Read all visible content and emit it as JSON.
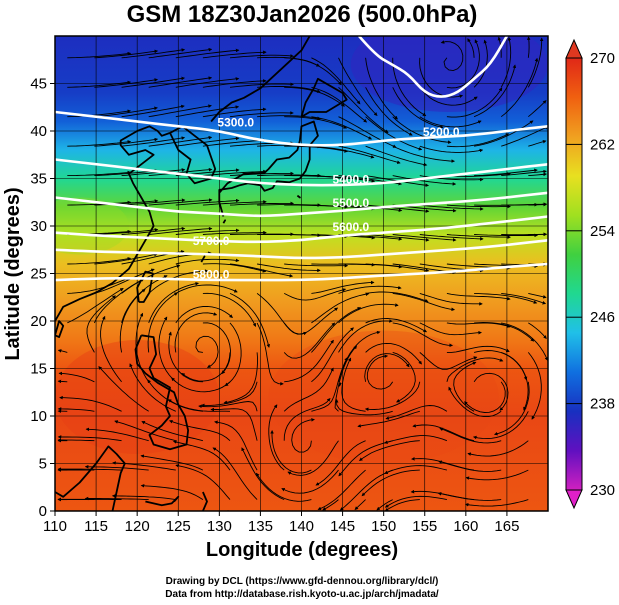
{
  "chart_data": {
    "type": "heatmap",
    "title": "GSM 18Z30Jan2026 (500.0hPa)",
    "xlabel": "Longitude (degrees)",
    "ylabel": "Latitude (degrees)",
    "xlim": [
      110,
      170
    ],
    "ylim": [
      0,
      50
    ],
    "xticks": [
      110,
      115,
      120,
      125,
      130,
      135,
      140,
      145,
      150,
      155,
      160,
      165
    ],
    "yticks": [
      0,
      5,
      10,
      15,
      20,
      25,
      30,
      35,
      40,
      45
    ],
    "grid": true,
    "colorbar": {
      "min": 230,
      "max": 270,
      "ticks": [
        230,
        238,
        246,
        254,
        262,
        270
      ],
      "colors": [
        "#d020c0",
        "#6010c0",
        "#1830c0",
        "#1070e0",
        "#20c0e8",
        "#20d890",
        "#40d040",
        "#a0e020",
        "#e8e020",
        "#f0a020",
        "#f06010",
        "#e02818"
      ]
    },
    "temperature_profile": {
      "latitudes": [
        0,
        5,
        10,
        15,
        18,
        22,
        26,
        29,
        32,
        35,
        38,
        41,
        44,
        50
      ],
      "values": [
        267,
        267.5,
        268,
        267,
        265,
        263,
        261,
        257,
        253,
        248,
        244,
        240,
        238,
        237
      ]
    },
    "contour_labels": [
      {
        "text": "5300.0",
        "lon": 132,
        "lat": 40.5
      },
      {
        "text": "5200.0",
        "lon": 157,
        "lat": 39.5
      },
      {
        "text": "5400.0",
        "lon": 146,
        "lat": 34.5
      },
      {
        "text": "5500.0",
        "lon": 146,
        "lat": 32.0
      },
      {
        "text": "5600.0",
        "lon": 146,
        "lat": 29.5
      },
      {
        "text": "5700.0",
        "lon": 129,
        "lat": 28.0
      },
      {
        "text": "5800.0",
        "lon": 129,
        "lat": 24.5
      }
    ],
    "contours": [
      {
        "value": 5200,
        "points": [
          [
            147,
            50
          ],
          [
            149,
            48
          ],
          [
            151,
            47
          ],
          [
            153,
            46
          ],
          [
            155,
            44
          ],
          [
            157,
            43.5
          ],
          [
            159,
            44
          ],
          [
            161,
            45.5
          ],
          [
            163,
            47
          ],
          [
            165,
            50
          ]
        ]
      },
      {
        "value": 5300,
        "points": [
          [
            110,
            42
          ],
          [
            115,
            41.5
          ],
          [
            120,
            41
          ],
          [
            125,
            40.5
          ],
          [
            130,
            40
          ],
          [
            135,
            39
          ],
          [
            140,
            38.5
          ],
          [
            145,
            38.5
          ],
          [
            150,
            39
          ],
          [
            155,
            39.3
          ],
          [
            160,
            39.5
          ],
          [
            165,
            40
          ],
          [
            170,
            40.5
          ]
        ]
      },
      {
        "value": 5400,
        "points": [
          [
            110,
            37
          ],
          [
            115,
            36.5
          ],
          [
            120,
            36
          ],
          [
            125,
            35.5
          ],
          [
            130,
            35
          ],
          [
            135,
            34.5
          ],
          [
            140,
            34.3
          ],
          [
            145,
            34.3
          ],
          [
            150,
            34.5
          ],
          [
            155,
            35
          ],
          [
            160,
            35.5
          ],
          [
            165,
            36
          ],
          [
            170,
            36.5
          ]
        ]
      },
      {
        "value": 5500,
        "points": [
          [
            110,
            33
          ],
          [
            115,
            32.5
          ],
          [
            120,
            32
          ],
          [
            125,
            31.5
          ],
          [
            130,
            31.3
          ],
          [
            135,
            31
          ],
          [
            140,
            31.3
          ],
          [
            145,
            31.6
          ],
          [
            150,
            32
          ],
          [
            155,
            32.3
          ],
          [
            160,
            32.6
          ],
          [
            165,
            33
          ],
          [
            170,
            33.5
          ]
        ]
      },
      {
        "value": 5600,
        "points": [
          [
            110,
            29.3
          ],
          [
            115,
            29
          ],
          [
            120,
            28.8
          ],
          [
            125,
            28.6
          ],
          [
            130,
            28.4
          ],
          [
            135,
            28.3
          ],
          [
            140,
            28.5
          ],
          [
            145,
            29
          ],
          [
            150,
            29.3
          ],
          [
            155,
            29.6
          ],
          [
            160,
            30
          ],
          [
            165,
            30.5
          ],
          [
            170,
            31
          ]
        ]
      },
      {
        "value": 5700,
        "points": [
          [
            110,
            27.5
          ],
          [
            115,
            27.3
          ],
          [
            120,
            27.2
          ],
          [
            125,
            27.1
          ],
          [
            130,
            27
          ],
          [
            135,
            26.8
          ],
          [
            140,
            26.6
          ],
          [
            145,
            26.7
          ],
          [
            150,
            27
          ],
          [
            155,
            27.3
          ],
          [
            160,
            27.6
          ],
          [
            165,
            28
          ],
          [
            170,
            28.5
          ]
        ]
      },
      {
        "value": 5800,
        "points": [
          [
            110,
            24.3
          ],
          [
            115,
            24.5
          ],
          [
            120,
            24.5
          ],
          [
            125,
            24.4
          ],
          [
            130,
            24.3
          ],
          [
            135,
            24.3
          ],
          [
            140,
            24.3
          ],
          [
            145,
            24.5
          ],
          [
            150,
            24.8
          ],
          [
            155,
            25
          ],
          [
            160,
            25.3
          ],
          [
            165,
            25.7
          ],
          [
            170,
            26
          ]
        ]
      }
    ],
    "coastlines": [
      [
        [
          110,
          20
        ],
        [
          111,
          21.5
        ],
        [
          113,
          22.3
        ],
        [
          115,
          23
        ],
        [
          117,
          24
        ],
        [
          119,
          25.5
        ],
        [
          120,
          27
        ],
        [
          121,
          28.5
        ],
        [
          122,
          30
        ],
        [
          121.5,
          31.5
        ],
        [
          120.5,
          33
        ],
        [
          119.5,
          34.5
        ],
        [
          119,
          35.5
        ],
        [
          120.5,
          36.5
        ],
        [
          122,
          37.5
        ],
        [
          121,
          38
        ],
        [
          119,
          37.5
        ],
        [
          118,
          38.5
        ],
        [
          118,
          39
        ],
        [
          120,
          40
        ],
        [
          121.5,
          40.5
        ],
        [
          122.5,
          40
        ],
        [
          123,
          39.5
        ],
        [
          124,
          39.8
        ]
      ],
      [
        [
          124,
          39.8
        ],
        [
          125.5,
          40.5
        ],
        [
          127,
          39.5
        ],
        [
          128.5,
          38.5
        ],
        [
          129.5,
          36
        ],
        [
          129,
          35
        ],
        [
          127,
          34.5
        ],
        [
          126,
          35.5
        ],
        [
          126.5,
          37
        ],
        [
          125,
          38
        ],
        [
          124,
          39.8
        ]
      ],
      [
        [
          129,
          41
        ],
        [
          130,
          42
        ],
        [
          131.5,
          43
        ],
        [
          133,
          43.5
        ],
        [
          135,
          44.5
        ],
        [
          137.5,
          46.5
        ],
        [
          140,
          48.5
        ],
        [
          141,
          50
        ]
      ],
      [
        [
          130.5,
          31
        ],
        [
          130,
          32.5
        ],
        [
          130,
          33.8
        ],
        [
          131.5,
          34
        ],
        [
          132.5,
          34.3
        ],
        [
          133.5,
          34.5
        ],
        [
          135,
          34.3
        ],
        [
          135.5,
          33.7
        ],
        [
          136.5,
          34
        ],
        [
          137,
          34.7
        ],
        [
          138.5,
          34.6
        ],
        [
          139.8,
          35
        ],
        [
          140.5,
          35.8
        ],
        [
          141,
          37
        ],
        [
          141,
          38.5
        ],
        [
          142,
          39.5
        ],
        [
          141.5,
          41
        ],
        [
          140,
          40.5
        ],
        [
          139.8,
          39
        ],
        [
          139.5,
          38
        ],
        [
          138.5,
          37.2
        ],
        [
          137,
          37
        ],
        [
          136,
          36
        ],
        [
          135.5,
          35.6
        ],
        [
          133,
          35.5
        ],
        [
          131,
          34.5
        ],
        [
          130,
          33.5
        ]
      ],
      [
        [
          140,
          41.5
        ],
        [
          141,
          42
        ],
        [
          143,
          42
        ],
        [
          145.5,
          43.3
        ],
        [
          145,
          44
        ],
        [
          142,
          45.5
        ],
        [
          141.5,
          44.5
        ],
        [
          140.5,
          43
        ],
        [
          140,
          41.5
        ]
      ],
      [
        [
          120.2,
          22
        ],
        [
          120,
          23.5
        ],
        [
          121,
          25.2
        ],
        [
          121.9,
          25
        ],
        [
          121.5,
          23
        ],
        [
          120.8,
          22
        ],
        [
          120.2,
          22
        ]
      ],
      [
        [
          120.5,
          18.5
        ],
        [
          122,
          18.3
        ],
        [
          122.3,
          16.5
        ],
        [
          121.5,
          15
        ],
        [
          122,
          14
        ],
        [
          124,
          13
        ],
        [
          123.5,
          11
        ],
        [
          124,
          10
        ],
        [
          123,
          9
        ],
        [
          121.5,
          8
        ],
        [
          122,
          7
        ],
        [
          124,
          6.5
        ],
        [
          126,
          7
        ],
        [
          126.2,
          8.5
        ],
        [
          125.8,
          10
        ],
        [
          125,
          11.2
        ],
        [
          124.5,
          12.5
        ],
        [
          122.5,
          13.5
        ],
        [
          121,
          14.5
        ],
        [
          120,
          15.5
        ],
        [
          119.8,
          17
        ],
        [
          120.5,
          18.5
        ]
      ],
      [
        [
          110,
          18.5
        ],
        [
          110.5,
          20
        ],
        [
          111,
          19.5
        ],
        [
          110.5,
          18.3
        ],
        [
          110,
          18.5
        ]
      ],
      [
        [
          110,
          2
        ],
        [
          111,
          1.5
        ],
        [
          113,
          3
        ],
        [
          115,
          5
        ],
        [
          116.5,
          6.8
        ],
        [
          117.5,
          6
        ],
        [
          118.5,
          5
        ],
        [
          118,
          4
        ],
        [
          117.5,
          2
        ],
        [
          117,
          0
        ]
      ],
      [
        [
          124.5,
          1
        ],
        [
          125,
          1.5
        ],
        [
          124.2,
          0.8
        ],
        [
          123,
          0.6
        ],
        [
          121,
          1
        ]
      ],
      [
        [
          128,
          2
        ],
        [
          128.5,
          1
        ],
        [
          128,
          0
        ]
      ],
      [
        [
          131,
          0
        ],
        [
          132,
          -0.3
        ],
        [
          134,
          -0.5
        ],
        [
          136,
          -1
        ]
      ],
      [
        [
          144.8,
          13.5
        ],
        [
          144.6,
          13.2
        ],
        [
          144.8,
          13.5
        ]
      ],
      [
        [
          127.8,
          26.2
        ],
        [
          128.2,
          26.8
        ],
        [
          127.8,
          26.2
        ]
      ],
      [
        [
          129.5,
          28.3
        ],
        [
          129.8,
          28.6
        ],
        [
          129.5,
          28.3
        ]
      ],
      [
        [
          130.5,
          30.3
        ],
        [
          130.7,
          30.6
        ],
        [
          130.5,
          30.3
        ]
      ],
      [
        [
          139.5,
          33.2
        ],
        [
          139.8,
          33.0
        ],
        [
          139.5,
          33.2
        ]
      ]
    ],
    "flow_pattern": {
      "description": "westerly jet between 25 and 40 N, anticyclonic swirls in the tropics",
      "cyclone_center": [
        158,
        47
      ],
      "anticyclone_centers": [
        [
          128,
          17
        ],
        [
          150,
          14
        ],
        [
          163,
          12
        ],
        [
          140,
          6
        ]
      ]
    }
  },
  "credits": {
    "line1": "Drawing by DCL (https://www.gfd-dennou.org/library/dcl/)",
    "line2": "Data from http://database.rish.kyoto-u.ac.jp/arch/jmadata/"
  }
}
